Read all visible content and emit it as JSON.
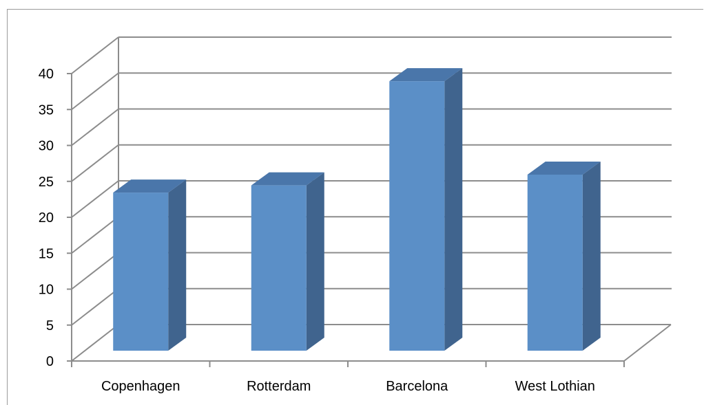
{
  "chart_data": {
    "type": "bar",
    "style": "3d-clustered-column",
    "categories": [
      "Copenhagen",
      "Rotterdam",
      "Barcelona",
      "West Lothian"
    ],
    "series": [
      {
        "values": [
          22,
          23,
          37.5,
          24.5
        ],
        "color": "#5b8fc7",
        "side_color": "#40648e",
        "top_color": "#4a76aa"
      }
    ],
    "title": "",
    "xlabel": "",
    "ylabel": "",
    "ylim": [
      0,
      40
    ],
    "y_ticks": [
      0,
      5,
      10,
      15,
      20,
      25,
      30,
      35,
      40
    ],
    "grid": true,
    "legend": "none",
    "gridline_color": "#8c8c8c",
    "frame_color": "#9a9a9a"
  }
}
